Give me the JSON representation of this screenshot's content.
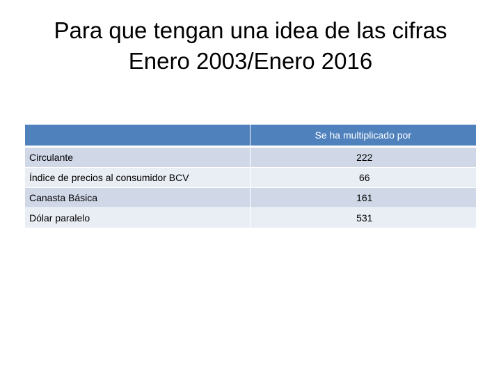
{
  "slide": {
    "title_line1": "Para que tengan una idea de las cifras",
    "title_line2": "Enero 2003/Enero 2016"
  },
  "table": {
    "headers": [
      "",
      "Se ha multiplicado por"
    ],
    "rows": [
      {
        "label": "Circulante",
        "value": "222"
      },
      {
        "label": "Índice de precios al consumidor BCV",
        "value": "66"
      },
      {
        "label": "Canasta Básica",
        "value": "161"
      },
      {
        "label": "Dólar paralelo",
        "value": "531"
      }
    ]
  },
  "colors": {
    "header_bg": "#4f81bd",
    "row_bg_dark": "#d0d8e8",
    "row_bg_light": "#e9edf4"
  }
}
